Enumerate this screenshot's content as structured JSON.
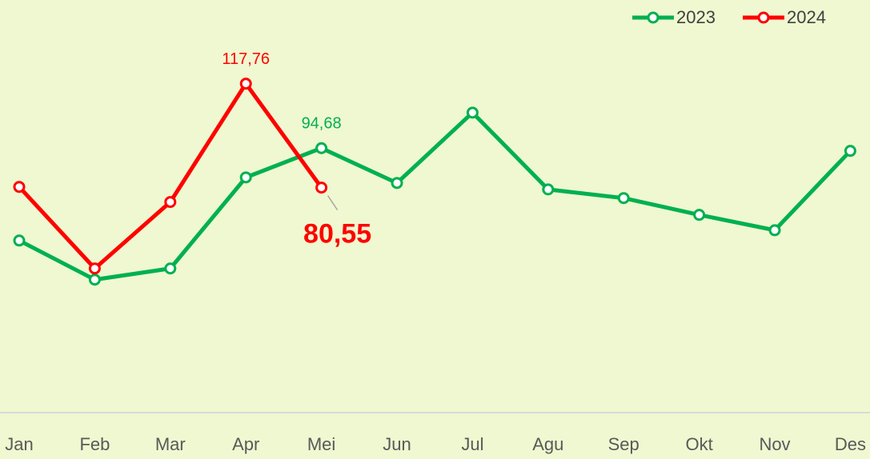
{
  "chart_data": {
    "type": "line",
    "categories": [
      "Jan",
      "Feb",
      "Mar",
      "Apr",
      "Mei",
      "Jun",
      "Jul",
      "Agu",
      "Sep",
      "Okt",
      "Nov",
      "Des"
    ],
    "series": [
      {
        "name": "2023",
        "color": "#00b050",
        "values": [
          61.6,
          47.6,
          51.6,
          84.2,
          94.68,
          82.2,
          107.4,
          79.9,
          76.8,
          70.8,
          65.3,
          93.7
        ],
        "value_labels": [
          null,
          null,
          null,
          null,
          "94,68",
          null,
          null,
          null,
          null,
          null,
          null,
          null
        ]
      },
      {
        "name": "2024",
        "color": "#ff0000",
        "values": [
          80.8,
          51.6,
          75.4,
          117.76,
          80.55,
          null,
          null,
          null,
          null,
          null,
          null,
          null
        ],
        "value_labels": [
          null,
          null,
          null,
          "117,76",
          "80,55",
          null,
          null,
          null,
          null,
          null,
          null,
          null
        ]
      }
    ],
    "ylim": [
      0,
      150
    ],
    "legend": "top-right"
  }
}
